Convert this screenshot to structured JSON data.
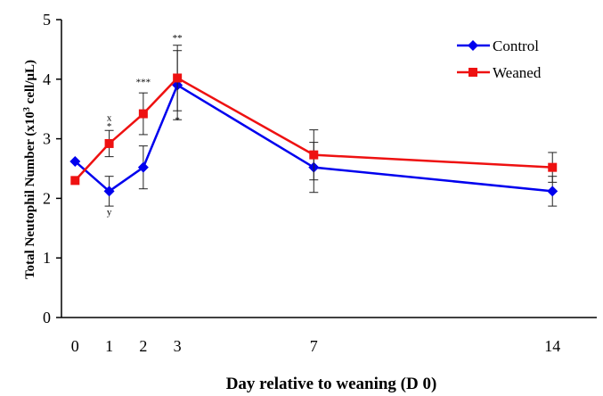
{
  "chart_data": {
    "type": "line",
    "title": "",
    "xlabel": "Day relative to weaning (D 0)",
    "ylabel_main": "Total Neutophil Number (x10",
    "ylabel_sup": "3",
    "ylabel_tail": " cell/μL)",
    "xlim": [
      -0.4,
      15.3
    ],
    "ylim": [
      0,
      5
    ],
    "grid": false,
    "legend_position": "top-right",
    "x": [
      0,
      1,
      2,
      3,
      7,
      14
    ],
    "x_tick_labels": [
      "0",
      "1",
      "2",
      "3",
      "7",
      "14"
    ],
    "y_ticks": [
      0,
      1,
      2,
      3,
      4,
      5
    ],
    "y_tick_labels": [
      "0",
      "1",
      "2",
      "3",
      "4",
      "5"
    ],
    "series": [
      {
        "name": "Control",
        "color": "#0000ee",
        "marker": "diamond",
        "values": [
          2.62,
          2.12,
          2.52,
          3.9,
          2.52,
          2.12
        ],
        "error": [
          0.0,
          0.25,
          0.36,
          0.58,
          0.42,
          0.25
        ]
      },
      {
        "name": "Weaned",
        "color": "#ee1111",
        "marker": "square",
        "values": [
          2.3,
          2.92,
          3.42,
          4.02,
          2.73,
          2.52
        ],
        "error": [
          0.0,
          0.22,
          0.35,
          0.55,
          0.42,
          0.25
        ]
      }
    ],
    "annotations": [
      {
        "x": 1,
        "y": 3.3,
        "text": "x"
      },
      {
        "x": 1,
        "y": 3.16,
        "text": "*"
      },
      {
        "x": 1,
        "y": 1.72,
        "text": "y"
      },
      {
        "x": 2,
        "y": 3.9,
        "text": "***"
      },
      {
        "x": 3,
        "y": 4.64,
        "text": "**"
      },
      {
        "x": 3,
        "y": 3.26,
        "text": "*"
      }
    ]
  }
}
